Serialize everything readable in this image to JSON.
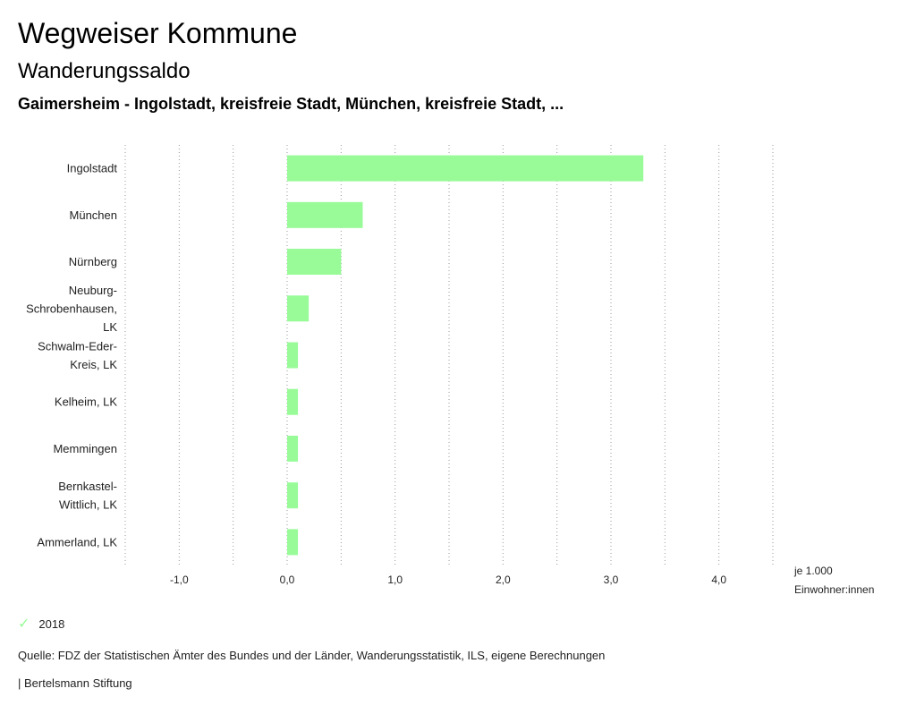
{
  "header": {
    "title": "Wegweiser Kommune",
    "subtitle": "Wanderungssaldo",
    "selection": "Gaimersheim - Ingolstadt, kreisfreie Stadt, München, kreisfreie Stadt, ..."
  },
  "colors": {
    "bar": "#98fb98",
    "grid": "#999999"
  },
  "chart_data": {
    "type": "bar",
    "orientation": "horizontal",
    "title": "Wanderungssaldo",
    "categories": [
      [
        "Ingolstadt"
      ],
      [
        "München"
      ],
      [
        "Nürnberg"
      ],
      [
        "Neuburg-",
        "Schrobenhausen,",
        "LK"
      ],
      [
        "Schwalm-Eder-",
        "Kreis, LK"
      ],
      [
        "Kelheim, LK"
      ],
      [
        "Memmingen"
      ],
      [
        "Bernkastel-",
        "Wittlich, LK"
      ],
      [
        "Ammerland, LK"
      ]
    ],
    "series": [
      {
        "name": "2018",
        "values": [
          3.3,
          0.7,
          0.5,
          0.2,
          0.1,
          0.1,
          0.1,
          0.1,
          0.1
        ]
      }
    ],
    "xlim": [
      -1.5,
      4.5
    ],
    "xticks": [
      -1,
      0,
      1,
      2,
      3,
      4
    ],
    "xtick_labels": [
      "-1,0",
      "0,0",
      "1,0",
      "2,0",
      "3,0",
      "4,0"
    ],
    "unit_label": [
      "je 1.000",
      "Einwohner:innen"
    ],
    "grid": true
  },
  "legend": {
    "label": "2018",
    "icon": "check-icon"
  },
  "footer": {
    "source": "Quelle: FDZ der Statistischen Ämter des Bundes und der Länder, Wanderungsstatistik, ILS, eigene Berechnungen",
    "publisher": "| Bertelsmann Stiftung"
  }
}
